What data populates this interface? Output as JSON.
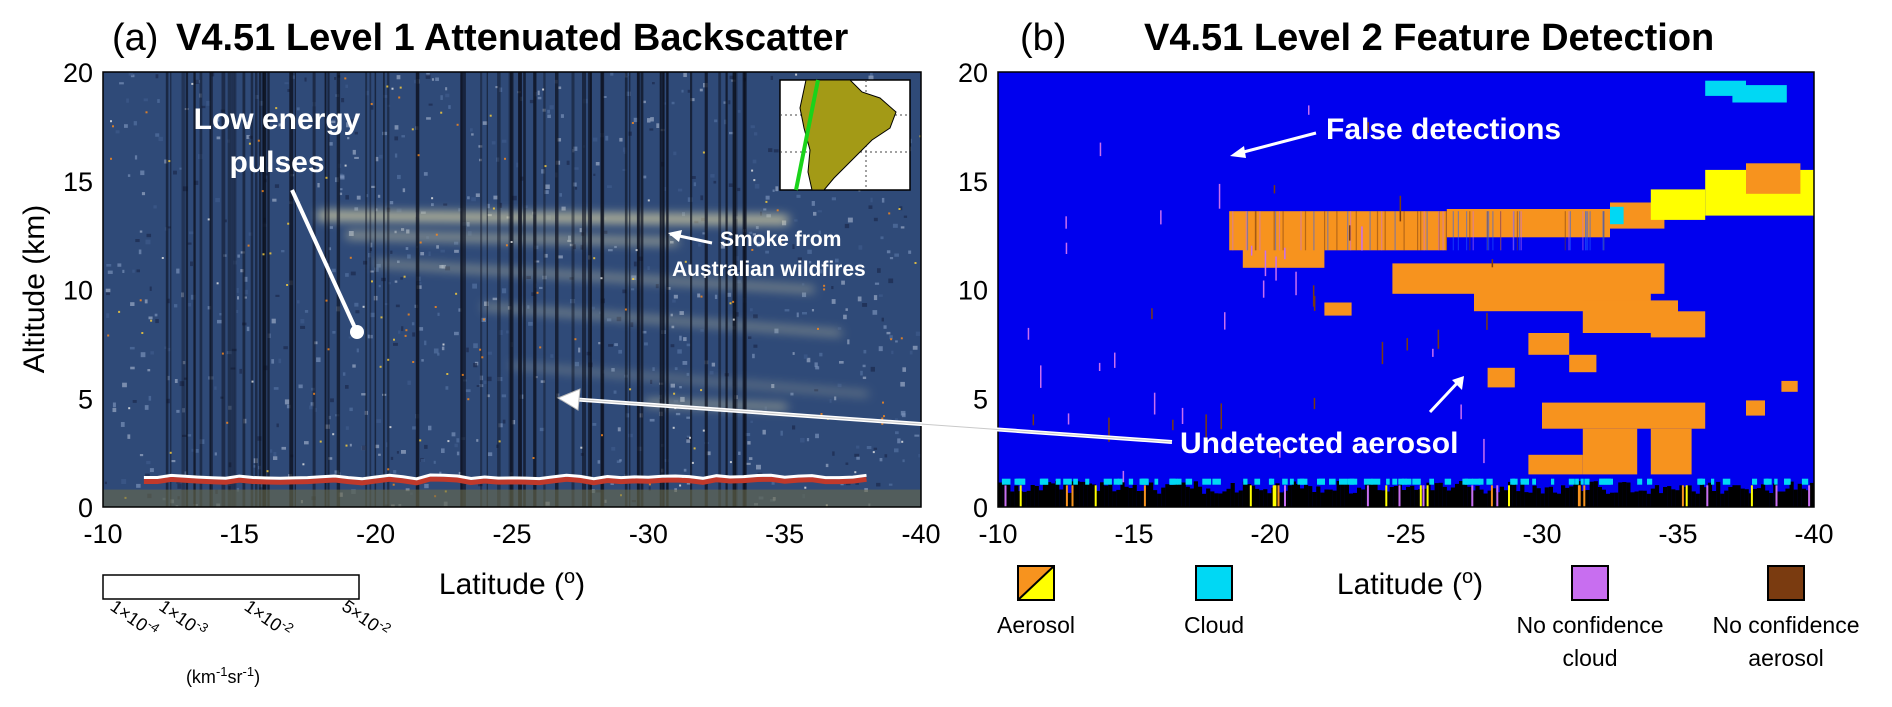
{
  "chart_data": [
    {
      "type": "heatmap",
      "panel_label": "(a)",
      "title": "V4.51 Level 1 Attenuated Backscatter",
      "xlabel": "Latitude (o)",
      "ylabel": "Altitude (km)",
      "xlim": [
        -10,
        -40
      ],
      "ylim": [
        0,
        20
      ],
      "x_ticks": [
        "-10",
        "-15",
        "-20",
        "-25",
        "-30",
        "-35",
        "-40"
      ],
      "y_ticks": [
        "0",
        "5",
        "10",
        "15",
        "20"
      ],
      "annotations": [
        {
          "text_line1": "Low energy",
          "text_line2": "pulses",
          "lat": -19.5,
          "alt": 8.0
        },
        {
          "text_line1": "Smoke from",
          "text_line2": "Australian wildfires",
          "lat": -29.5,
          "alt": 12.3
        }
      ],
      "colorbar": {
        "unit": "(km-1sr-1)",
        "tick_labels": [
          "1×10-4",
          "1×10-3",
          "1×10-2",
          "5×10-2"
        ],
        "colors": [
          "#101010",
          "#1f2d55",
          "#2e447b",
          "#435c95",
          "#5e77ab",
          "#7d93bf",
          "#a2b0cc",
          "#c4c9cf",
          "#ffff55",
          "#ffd700",
          "#f4a100",
          "#e04a00",
          "#b80000",
          "#8a0000",
          "#5a2020",
          "#555555",
          "#777777",
          "#999999",
          "#bbbbbb",
          "#dddddd",
          "#f7f7f7"
        ]
      },
      "colors": {
        "background": "#2f4a78",
        "surface_line": "#ffffff",
        "smoke": "#e2d9a6"
      }
    },
    {
      "type": "heatmap",
      "panel_label": "(b)",
      "title": "V4.51 Level 2 Feature Detection",
      "xlabel": "Latitude (o)",
      "xlim": [
        -10,
        -40
      ],
      "ylim": [
        0,
        20
      ],
      "x_ticks": [
        "-10",
        "-15",
        "-20",
        "-25",
        "-30",
        "-35",
        "-40"
      ],
      "y_ticks": [
        "0",
        "5",
        "10",
        "15",
        "20"
      ],
      "annotations": [
        {
          "text": "False detections",
          "lat": -18.5,
          "alt": 16.5
        },
        {
          "text": "Undetected aerosol",
          "lat": -27.0,
          "alt": 5.5
        }
      ],
      "legend": [
        {
          "label": "Aerosol",
          "colors": [
            "#f7931e",
            "#ffff00"
          ]
        },
        {
          "label": "Cloud",
          "colors": [
            "#00d8f4"
          ]
        },
        {
          "label_line1": "No confidence",
          "label_line2": "cloud",
          "colors": [
            "#c86ef0"
          ]
        },
        {
          "label_line1": "No confidence",
          "label_line2": "aerosol",
          "colors": [
            "#7a3b10"
          ]
        }
      ],
      "colors": {
        "clear_air": "#0000ee",
        "aerosol": "#f7931e",
        "stratospheric_aerosol": "#ffff00",
        "cloud": "#00d8f4",
        "surface": "#000000"
      }
    }
  ]
}
